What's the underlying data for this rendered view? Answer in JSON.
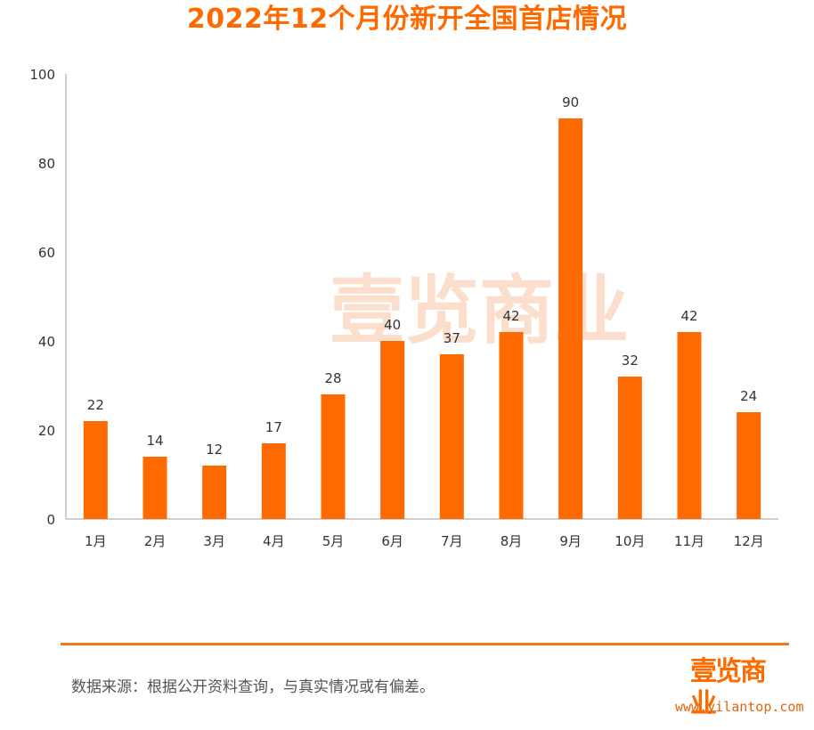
{
  "colors": {
    "bar": "#ff6a00",
    "title": "#ff6a00",
    "axis": "#c0c0c0",
    "text": "#333333",
    "watermark": "#f8c5a3",
    "rule": "#f07a1a"
  },
  "watermark": {
    "text": "壹览商业"
  },
  "footer": {
    "source": "数据来源：根据公开资料查询，与真实情况或有偏差。",
    "logo_text": "壹览商业",
    "url": "www.yilantop.com"
  },
  "chart_data": {
    "type": "bar",
    "title": "2022年12个月份新开全国首店情况",
    "categories": [
      "1月",
      "2月",
      "3月",
      "4月",
      "5月",
      "6月",
      "7月",
      "8月",
      "9月",
      "10月",
      "11月",
      "12月"
    ],
    "values": [
      22,
      14,
      12,
      17,
      28,
      40,
      37,
      42,
      90,
      32,
      42,
      24
    ],
    "ylim": [
      0,
      100
    ],
    "yticks": [
      0,
      20,
      40,
      60,
      80,
      100
    ],
    "xlabel": "",
    "ylabel": "",
    "grid": false,
    "data_labels": true
  }
}
